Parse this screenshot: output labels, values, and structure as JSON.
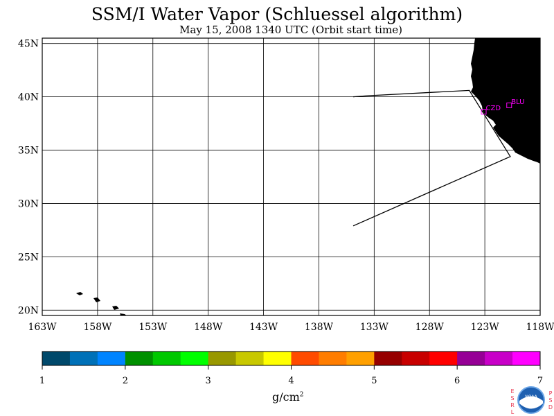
{
  "header": {
    "title": "SSM/I Water Vapor (Schluessel algorithm)",
    "subtitle": "May 15, 2008  1340 UTC  (Orbit start time)"
  },
  "map": {
    "lon_range": [
      -163,
      -118
    ],
    "lat_range": [
      19.5,
      45.5
    ],
    "lon_ticks": [
      {
        "value": -163,
        "label": "163W"
      },
      {
        "value": -158,
        "label": "158W"
      },
      {
        "value": -153,
        "label": "153W"
      },
      {
        "value": -148,
        "label": "148W"
      },
      {
        "value": -143,
        "label": "143W"
      },
      {
        "value": -138,
        "label": "138W"
      },
      {
        "value": -133,
        "label": "133W"
      },
      {
        "value": -128,
        "label": "128W"
      },
      {
        "value": -123,
        "label": "123W"
      },
      {
        "value": -118,
        "label": "118W"
      }
    ],
    "lat_ticks": [
      {
        "value": 45,
        "label": "45N"
      },
      {
        "value": 40,
        "label": "40N"
      },
      {
        "value": 35,
        "label": "35N"
      },
      {
        "value": 30,
        "label": "30N"
      },
      {
        "value": 25,
        "label": "25N"
      },
      {
        "value": 20,
        "label": "20N"
      }
    ],
    "stations": [
      {
        "code": "CZD",
        "lon": -123.1,
        "lat": 38.6
      },
      {
        "code": "BLU",
        "lon": -120.8,
        "lat": 39.2
      }
    ],
    "swath_outline": [
      [
        -134.9,
        40.0
      ],
      [
        -133.6,
        40.1
      ],
      [
        -124.4,
        40.6
      ],
      [
        -120.7,
        34.4
      ],
      [
        -134.9,
        27.9
      ]
    ],
    "land_color": "#000000"
  },
  "colorbar": {
    "colors": [
      "#00496b",
      "#0071b8",
      "#0084ff",
      "#009000",
      "#00c800",
      "#00ff00",
      "#989800",
      "#c8c800",
      "#ffff00",
      "#ff4b00",
      "#ff7d00",
      "#ffa000",
      "#960000",
      "#c80000",
      "#ff0000",
      "#960096",
      "#c800c8",
      "#ff00ff"
    ],
    "ticks": [
      "1",
      "2",
      "3",
      "4",
      "5",
      "6",
      "7"
    ],
    "unit": "g/cm",
    "unit_exp": "2"
  },
  "logo": {
    "left_letters": [
      "E",
      "S",
      "R",
      "L"
    ],
    "right_letters": [
      "P",
      "S",
      "D"
    ],
    "emblem_text": "NOAA"
  }
}
